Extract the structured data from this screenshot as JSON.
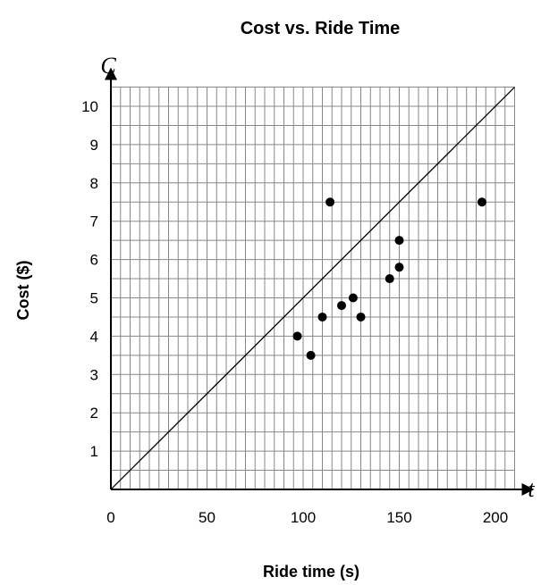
{
  "chart_data": {
    "type": "scatter",
    "title": "Cost vs. Ride Time",
    "xlabel": "Ride time (s)",
    "ylabel": "Cost ($)",
    "x_variable": "t",
    "y_variable": "C",
    "xlim": [
      0,
      210
    ],
    "ylim": [
      0,
      10.5
    ],
    "x_ticks": [
      {
        "value": 0,
        "label": "0"
      },
      {
        "value": 50,
        "label": "50"
      },
      {
        "value": 100,
        "label": "100"
      },
      {
        "value": 150,
        "label": "150"
      },
      {
        "value": 200,
        "label": "200"
      }
    ],
    "y_ticks": [
      {
        "value": 1,
        "label": "1"
      },
      {
        "value": 2,
        "label": "2"
      },
      {
        "value": 3,
        "label": "3"
      },
      {
        "value": 4,
        "label": "4"
      },
      {
        "value": 5,
        "label": "5"
      },
      {
        "value": 6,
        "label": "6"
      },
      {
        "value": 7,
        "label": "7"
      },
      {
        "value": 8,
        "label": "8"
      },
      {
        "value": 9,
        "label": "9"
      },
      {
        "value": 10,
        "label": "10"
      }
    ],
    "grid": true,
    "grid_step_x": 5,
    "grid_step_y": 0.5,
    "points": [
      {
        "x": 97,
        "y": 4
      },
      {
        "x": 104,
        "y": 3.5
      },
      {
        "x": 110,
        "y": 4.5
      },
      {
        "x": 114,
        "y": 7.5
      },
      {
        "x": 120,
        "y": 4.8
      },
      {
        "x": 126,
        "y": 5
      },
      {
        "x": 130,
        "y": 4.5
      },
      {
        "x": 145,
        "y": 5.5
      },
      {
        "x": 150,
        "y": 5.8
      },
      {
        "x": 150,
        "y": 6.5
      },
      {
        "x": 193,
        "y": 7.5
      }
    ],
    "line": {
      "slope": 0.05,
      "intercept": 0
    },
    "colors": {
      "points": "#000000",
      "grid": "#888888",
      "axes": "#000000",
      "line": "#000000"
    }
  }
}
